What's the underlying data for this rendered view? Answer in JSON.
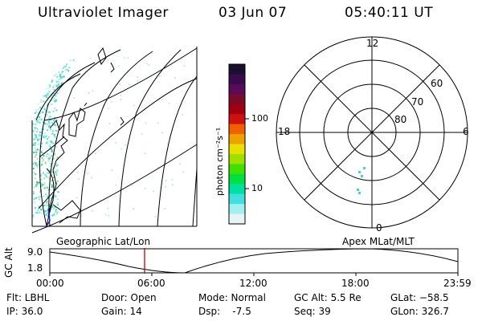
{
  "header": {
    "instrument": "Ultraviolet Imager",
    "date": "03 Jun 07",
    "time": "05:40:11 UT"
  },
  "colorbar": {
    "unit_label": "photon cm⁻²s⁻¹",
    "ticks": [
      "100",
      "10"
    ],
    "colors": [
      "#1a0f2e",
      "#3a0a4a",
      "#5a0a5a",
      "#7a0a2a",
      "#a00010",
      "#d01010",
      "#f06000",
      "#f0a000",
      "#e8e000",
      "#a0e000",
      "#40e000",
      "#00e040",
      "#00e0a0",
      "#40e0e0",
      "#a0f0f0",
      "#e8f4f4"
    ]
  },
  "left_map": {
    "caption": "Geographic Lat/Lon",
    "pixel_color": "#40d8c8",
    "pixel_color_strong": "#30c870"
  },
  "right_plot": {
    "caption": "Apex MLat/MLT",
    "mlt_labels": {
      "top": "12",
      "left": "18",
      "right": "6",
      "bottom": "0"
    },
    "lat_labels": [
      "60",
      "70",
      "80"
    ]
  },
  "altitude_strip": {
    "axis_label": "GC Alt",
    "y_ticks": [
      "9.0",
      "1.8"
    ],
    "time_ticks": [
      "00:00",
      "06:00",
      "12:00",
      "18:00",
      "23:59"
    ],
    "current_marker_time": "05:40",
    "marker_color": "#cc0000"
  },
  "info": {
    "flt": "Flt: LBHL",
    "ip": "IP: 36.0",
    "door": "Door: Open",
    "gain": "Gain: 14",
    "mode": "Mode: Normal",
    "dsp": "Dsp:    -7.5",
    "gc_alt": "GC Alt: 5.5 Re",
    "seq": "Seq: 39",
    "glat": "GLat: −58.5",
    "glon": "GLon: 326.7"
  }
}
